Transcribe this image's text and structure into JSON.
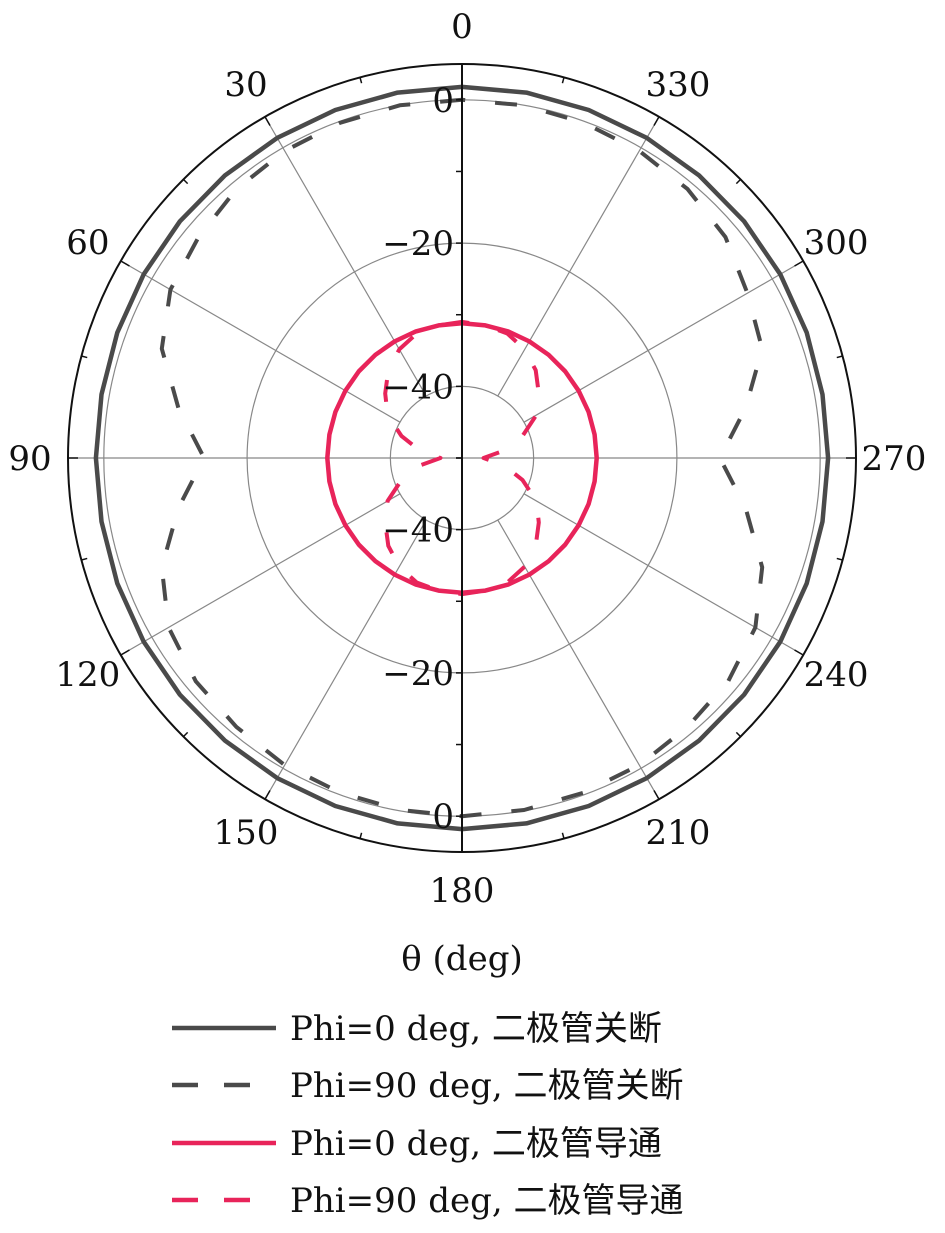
{
  "chart_data": {
    "type": "polar-line",
    "xlabel": "θ (deg)",
    "theta_direction": "counterclockwise",
    "theta_zero": "top",
    "theta_ticks": [
      0,
      30,
      60,
      90,
      120,
      150,
      180,
      210,
      240,
      270,
      300,
      330
    ],
    "radial_range": [
      -50,
      5
    ],
    "radial_ticks": [
      -40,
      -20,
      0
    ],
    "radial_tick_labels_top": [
      "0",
      "−20",
      "−40"
    ],
    "radial_tick_labels_bottom": [
      "−40",
      "−20",
      "0"
    ],
    "grid": true,
    "legend_position": "bottom",
    "theta": [
      0,
      10,
      20,
      30,
      40,
      50,
      60,
      70,
      80,
      90,
      100,
      110,
      120,
      130,
      140,
      150,
      160,
      170,
      180,
      190,
      200,
      210,
      220,
      230,
      240,
      250,
      260,
      270,
      280,
      290,
      300,
      310,
      320,
      330,
      340,
      350,
      360
    ],
    "series": [
      {
        "name": "Phi=0 deg, 二极管关断",
        "color": "#4a4a4a",
        "style": "solid",
        "values": [
          1.8,
          1.8,
          1.7,
          1.6,
          1.5,
          1.4,
          1.3,
          1.2,
          1.1,
          1.1,
          1.1,
          1.2,
          1.3,
          1.4,
          1.5,
          1.6,
          1.7,
          1.8,
          1.8,
          1.8,
          1.7,
          1.6,
          1.5,
          1.4,
          1.3,
          1.2,
          1.1,
          1.1,
          1.1,
          1.2,
          1.3,
          1.4,
          1.5,
          1.6,
          1.7,
          1.8,
          1.8
        ]
      },
      {
        "name": "Phi=90 deg, 二极管关断",
        "color": "#4a4a4a",
        "style": "dashed",
        "values": [
          0,
          0,
          -0.2,
          -0.5,
          -1,
          -2,
          -3,
          -5.4,
          -9.8,
          -14,
          -9.8,
          -5.4,
          -2.7,
          -1.5,
          -1,
          -0.5,
          -0.3,
          -0.1,
          0,
          -0.1,
          -0.3,
          -0.5,
          -1,
          -1.5,
          -2.7,
          -5.4,
          -9.8,
          -14,
          -9.8,
          -5.4,
          -4,
          -2,
          -1,
          -0.5,
          -0.2,
          0,
          0
        ]
      },
      {
        "name": "Phi=0 deg, 二极管导通",
        "color": "#e8245a",
        "style": "solid",
        "values": [
          -31.2,
          -31.2,
          -31.2,
          -31.2,
          -31.2,
          -31.2,
          -31.2,
          -31.2,
          -31.2,
          -31.2,
          -31.2,
          -31.2,
          -31.2,
          -31.2,
          -31.2,
          -31.2,
          -31.2,
          -31.2,
          -31.2,
          -31.2,
          -31.2,
          -31.2,
          -31.2,
          -31.2,
          -31.2,
          -31.2,
          -31.2,
          -31.2,
          -31.2,
          -31.2,
          -31.2,
          -31.2,
          -31.2,
          -31.2,
          -31.2,
          -31.2,
          -31.2
        ]
      },
      {
        "name": "Phi=90 deg, 二极管导通",
        "color": "#e8245a",
        "style": "dashed",
        "values": [
          -31,
          -31.2,
          -31.5,
          -32.5,
          -34,
          -36,
          -38,
          -41,
          -44,
          -47,
          -44,
          -41,
          -38,
          -36,
          -34,
          -32.5,
          -31.5,
          -31.2,
          -31,
          -31.2,
          -31.5,
          -32.5,
          -34,
          -36,
          -38,
          -41,
          -44,
          -47,
          -44,
          -41,
          -38,
          -36,
          -34,
          -32.5,
          -31.5,
          -31.2,
          -31
        ]
      }
    ]
  }
}
